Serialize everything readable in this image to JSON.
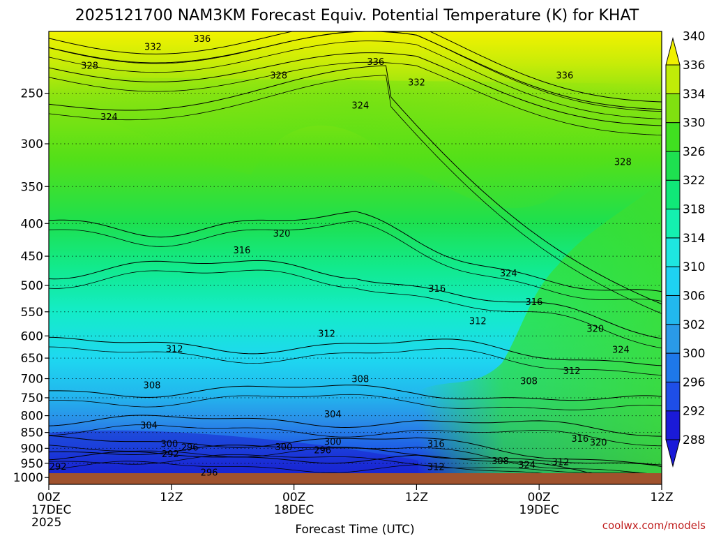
{
  "chart_data": {
    "type": "heatmap",
    "title": "2025121700 NAM3KM Forecast Equiv. Potential Temperature (K) for KHAT",
    "xlabel": "Forecast Time (UTC)",
    "ylabel": "",
    "x_range_hours": [
      0,
      60
    ],
    "y_range_hpa": [
      1025,
      200
    ],
    "y_ticks": [
      250,
      300,
      350,
      400,
      450,
      500,
      550,
      600,
      650,
      700,
      750,
      800,
      850,
      900,
      950,
      1000
    ],
    "x_ticks": [
      {
        "hour": 0,
        "lines": [
          "00Z",
          "17DEC",
          "2025"
        ]
      },
      {
        "hour": 12,
        "lines": [
          "12Z"
        ]
      },
      {
        "hour": 24,
        "lines": [
          "00Z",
          "18DEC"
        ]
      },
      {
        "hour": 36,
        "lines": [
          "12Z"
        ]
      },
      {
        "hour": 48,
        "lines": [
          "00Z",
          "19DEC"
        ]
      },
      {
        "hour": 60,
        "lines": [
          "12Z"
        ]
      }
    ],
    "colorbar": {
      "levels": [
        288,
        292,
        296,
        300,
        302,
        306,
        310,
        314,
        318,
        322,
        326,
        330,
        334,
        336,
        340
      ],
      "colors": [
        "#1a1ad8",
        "#1e4ee8",
        "#1e78ea",
        "#2a9ae8",
        "#22b8ee",
        "#1ed2f2",
        "#1ee6e0",
        "#14f0b0",
        "#10e878",
        "#1ee050",
        "#40e020",
        "#80e010",
        "#c0ec08",
        "#f0f000"
      ]
    },
    "contour_levels": [
      292,
      296,
      300,
      304,
      308,
      312,
      316,
      320,
      324,
      328,
      332,
      336
    ],
    "contour_labels": [
      {
        "text": "336",
        "hour": 15.0,
        "hpa": 205
      },
      {
        "text": "332",
        "hour": 10.2,
        "hpa": 211
      },
      {
        "text": "328",
        "hour": 4.0,
        "hpa": 226
      },
      {
        "text": "336",
        "hour": 32.0,
        "hpa": 223
      },
      {
        "text": "328",
        "hour": 22.5,
        "hpa": 234
      },
      {
        "text": "332",
        "hour": 36.0,
        "hpa": 240
      },
      {
        "text": "336",
        "hour": 50.5,
        "hpa": 234
      },
      {
        "text": "324",
        "hour": 5.9,
        "hpa": 272
      },
      {
        "text": "324",
        "hour": 30.5,
        "hpa": 261
      },
      {
        "text": "328",
        "hour": 56.2,
        "hpa": 320
      },
      {
        "text": "320",
        "hour": 22.8,
        "hpa": 414
      },
      {
        "text": "316",
        "hour": 18.9,
        "hpa": 440
      },
      {
        "text": "324",
        "hour": 45.0,
        "hpa": 478
      },
      {
        "text": "316",
        "hour": 38.0,
        "hpa": 505
      },
      {
        "text": "316",
        "hour": 47.5,
        "hpa": 530
      },
      {
        "text": "312",
        "hour": 42.0,
        "hpa": 568
      },
      {
        "text": "320",
        "hour": 53.5,
        "hpa": 584
      },
      {
        "text": "312",
        "hour": 27.2,
        "hpa": 594
      },
      {
        "text": "312",
        "hour": 12.3,
        "hpa": 628
      },
      {
        "text": "324",
        "hour": 56.0,
        "hpa": 630
      },
      {
        "text": "312",
        "hour": 51.2,
        "hpa": 680
      },
      {
        "text": "308",
        "hour": 47.0,
        "hpa": 705
      },
      {
        "text": "308",
        "hour": 30.5,
        "hpa": 700
      },
      {
        "text": "308",
        "hour": 10.1,
        "hpa": 716
      },
      {
        "text": "304",
        "hour": 27.8,
        "hpa": 795
      },
      {
        "text": "304",
        "hour": 9.8,
        "hpa": 828
      },
      {
        "text": "316",
        "hour": 52.0,
        "hpa": 868
      },
      {
        "text": "316",
        "hour": 37.9,
        "hpa": 885
      },
      {
        "text": "320",
        "hour": 53.8,
        "hpa": 880
      },
      {
        "text": "300",
        "hour": 27.8,
        "hpa": 878
      },
      {
        "text": "300",
        "hour": 11.8,
        "hpa": 885
      },
      {
        "text": "296",
        "hour": 13.8,
        "hpa": 896
      },
      {
        "text": "300",
        "hour": 23.0,
        "hpa": 895
      },
      {
        "text": "296",
        "hour": 26.8,
        "hpa": 905
      },
      {
        "text": "292",
        "hour": 11.9,
        "hpa": 918
      },
      {
        "text": "308",
        "hour": 44.2,
        "hpa": 941
      },
      {
        "text": "312",
        "hour": 50.1,
        "hpa": 944
      },
      {
        "text": "324",
        "hour": 46.8,
        "hpa": 954
      },
      {
        "text": "312",
        "hour": 37.9,
        "hpa": 961
      },
      {
        "text": "292",
        "hour": 0.9,
        "hpa": 960
      },
      {
        "text": "296",
        "hour": 15.7,
        "hpa": 981
      }
    ]
  },
  "credit": "coolwx.com/models"
}
